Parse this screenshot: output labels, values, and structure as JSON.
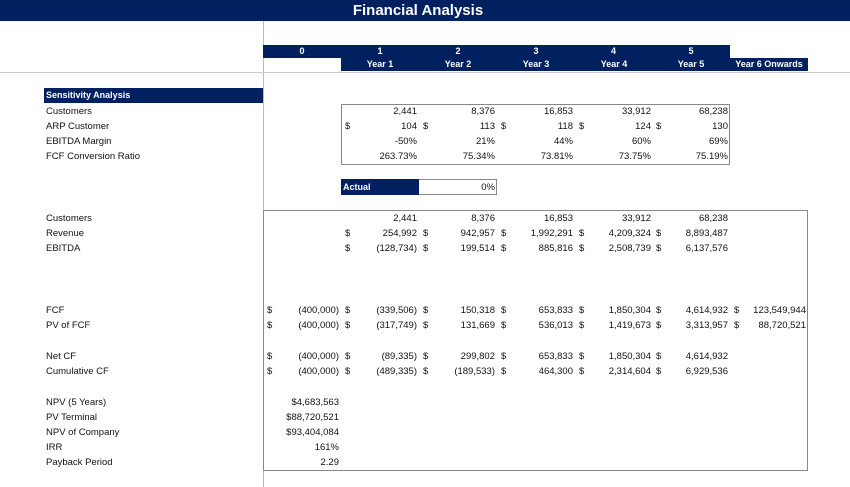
{
  "title": "Financial Analysis",
  "period_numbers": [
    "0",
    "1",
    "2",
    "3",
    "4",
    "5"
  ],
  "year_labels": [
    "Year 1",
    "Year 2",
    "Year 3",
    "Year 4",
    "Year 5",
    "Year 6 Onwards"
  ],
  "sensitivity": {
    "header": "Sensitivity Analysis",
    "rows": [
      {
        "label": "Customers",
        "dollar": false,
        "values": [
          "2,441",
          "8,376",
          "16,853",
          "33,912",
          "68,238"
        ]
      },
      {
        "label": "ARP Customer",
        "dollar": true,
        "values": [
          "104",
          "113",
          "118",
          "124",
          "130"
        ]
      },
      {
        "label": "EBITDA Margin",
        "dollar": false,
        "values": [
          "-50%",
          "21%",
          "44%",
          "60%",
          "69%"
        ]
      },
      {
        "label": "FCF Conversion Ratio",
        "dollar": false,
        "values": [
          "263.73%",
          "75.34%",
          "73.81%",
          "73.75%",
          "75.19%"
        ]
      }
    ],
    "actual_label": "Actual",
    "actual_value": "0%"
  },
  "main_rows": [
    {
      "label": "Customers",
      "start": 1,
      "dollar": false,
      "values": [
        "2,441",
        "8,376",
        "16,853",
        "33,912",
        "68,238"
      ]
    },
    {
      "label": "Revenue",
      "start": 1,
      "dollar": true,
      "values": [
        "254,992",
        "942,957",
        "1,992,291",
        "4,209,324",
        "8,893,487"
      ]
    },
    {
      "label": "EBITDA",
      "start": 1,
      "dollar": true,
      "values": [
        "(128,734)",
        "199,514",
        "885,816",
        "2,508,739",
        "6,137,576"
      ]
    },
    {
      "label": "FCF",
      "start": 0,
      "dollar": true,
      "values": [
        "(400,000)",
        "(339,506)",
        "150,318",
        "653,833",
        "1,850,304",
        "4,614,932",
        "123,549,944"
      ]
    },
    {
      "label": "PV of FCF",
      "start": 0,
      "dollar": true,
      "values": [
        "(400,000)",
        "(317,749)",
        "131,669",
        "536,013",
        "1,419,673",
        "3,313,957",
        "88,720,521"
      ]
    },
    {
      "label": "Net CF",
      "start": 0,
      "dollar": true,
      "values": [
        "(400,000)",
        "(89,335)",
        "299,802",
        "653,833",
        "1,850,304",
        "4,614,932"
      ]
    },
    {
      "label": "Cumulative CF",
      "start": 0,
      "dollar": true,
      "values": [
        "(400,000)",
        "(489,335)",
        "(189,533)",
        "464,300",
        "2,314,604",
        "6,929,536"
      ]
    }
  ],
  "summary": [
    {
      "label": "NPV (5 Years)",
      "value": "$4,683,563"
    },
    {
      "label": "PV Terminal",
      "value": "$88,720,521"
    },
    {
      "label": "NPV of Company",
      "value": "$93,404,084"
    },
    {
      "label": "IRR",
      "value": "161%"
    },
    {
      "label": "Payback Period",
      "value": "2.29"
    }
  ],
  "colors": {
    "header_navy": "#002060"
  }
}
